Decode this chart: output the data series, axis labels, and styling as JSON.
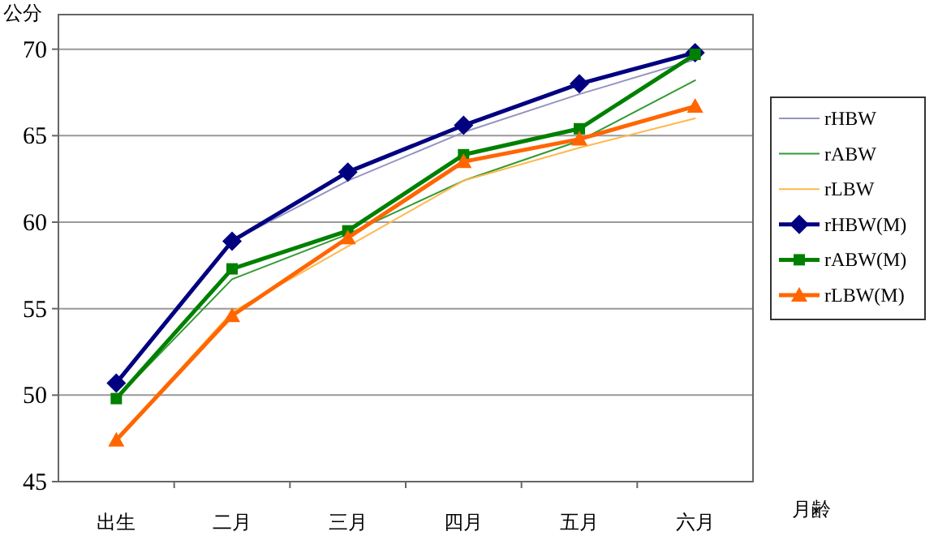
{
  "chart_data": {
    "type": "line",
    "ylabel": "公分",
    "xlabel": "月齢",
    "categories": [
      "出生",
      "二月",
      "三月",
      "四月",
      "五月",
      "六月"
    ],
    "ylim": [
      45,
      72
    ],
    "yticks": [
      45,
      50,
      55,
      60,
      65,
      70
    ],
    "grid": "y",
    "legend": "right",
    "series": [
      {
        "name": "rHBW",
        "color": "#9494c2",
        "marker": "none",
        "values": [
          50.7,
          58.9,
          62.4,
          65.2,
          67.4,
          69.4
        ]
      },
      {
        "name": "rABW",
        "color": "#339933",
        "marker": "none",
        "values": [
          49.8,
          56.7,
          59.3,
          62.4,
          64.7,
          68.2
        ]
      },
      {
        "name": "rLBW",
        "color": "#ffb84d",
        "marker": "none",
        "values": [
          47.4,
          54.8,
          58.6,
          62.4,
          64.3,
          66.0
        ]
      },
      {
        "name": "rHBW(M)",
        "color": "#000080",
        "marker": "diamond",
        "values": [
          50.7,
          58.9,
          62.9,
          65.6,
          68.0,
          69.8
        ]
      },
      {
        "name": "rABW(M)",
        "color": "#008000",
        "marker": "square",
        "values": [
          49.8,
          57.3,
          59.5,
          63.9,
          65.4,
          69.7
        ]
      },
      {
        "name": "rLBW(M)",
        "color": "#ff6600",
        "marker": "triangle",
        "values": [
          47.4,
          54.6,
          59.1,
          63.5,
          64.8,
          66.7
        ]
      }
    ]
  }
}
